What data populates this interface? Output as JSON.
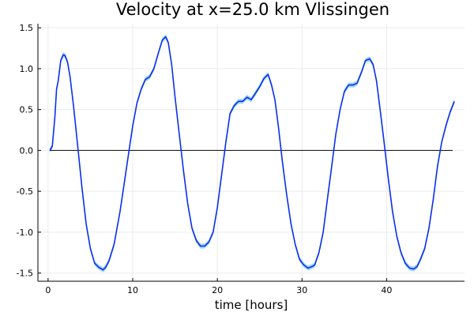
{
  "chart_data": {
    "type": "line",
    "title": "Velocity at x=25.0 km Vlissingen",
    "xlabel": "time [hours]",
    "ylabel": "",
    "xlim": [
      -1.2,
      49.2
    ],
    "ylim": [
      -1.6,
      1.55
    ],
    "xticks": [
      0,
      10,
      20,
      30,
      40
    ],
    "yticks": [
      -1.5,
      -1.0,
      -0.5,
      0.0,
      0.5,
      1.0,
      1.5
    ],
    "ytick_labels": [
      "-1.5",
      "-1.0",
      "-0.5",
      "0.0",
      "0.5",
      "1.0",
      "1.5"
    ],
    "grid": true,
    "legend": "none",
    "colors": {
      "velocity": "#0a2ff0",
      "band": "#7fc8f0",
      "zero_line": "#222222",
      "grid": "#ebebeb"
    },
    "band_halfwidth": 0.03,
    "series": [
      {
        "x": [
          0.2,
          0.5,
          0.8,
          1.0,
          1.2,
          1.5,
          1.8,
          2.0,
          2.3,
          2.6,
          3.0,
          3.5,
          4.0,
          4.5,
          5.0,
          5.5,
          6.0,
          6.5,
          6.8,
          7.2,
          7.8,
          8.5,
          9.0,
          9.5,
          10.0,
          10.5,
          11.0,
          11.5,
          12.0,
          12.5,
          13.0,
          13.5,
          13.9,
          14.2,
          14.6,
          15.0,
          15.5,
          16.0,
          16.5,
          17.0,
          17.5,
          18.0,
          18.5,
          19.0,
          19.5,
          20.0,
          20.5,
          21.0,
          21.5,
          22.0,
          22.5,
          23.0,
          23.5,
          24.0,
          24.5,
          25.0,
          25.5,
          26.0,
          26.4,
          26.8,
          27.2,
          27.7,
          28.2,
          28.7,
          29.2,
          29.7,
          30.2,
          30.7,
          31.2,
          31.5,
          32.0,
          32.5,
          33.0,
          33.5,
          34.0,
          34.5,
          35.0,
          35.5,
          36.0,
          36.5,
          37.0,
          37.5,
          38.0,
          38.4,
          38.8,
          39.2,
          39.7,
          40.2,
          40.7,
          41.2,
          41.7,
          42.2,
          42.7,
          43.2,
          43.6,
          44.0,
          44.5,
          45.0,
          45.5,
          46.0,
          46.5,
          47.0,
          47.5,
          48.0
        ],
        "y": [
          0.0,
          0.05,
          0.4,
          0.75,
          0.85,
          1.1,
          1.17,
          1.16,
          1.08,
          0.9,
          0.55,
          0.05,
          -0.45,
          -0.9,
          -1.2,
          -1.38,
          -1.43,
          -1.46,
          -1.43,
          -1.35,
          -1.15,
          -0.75,
          -0.4,
          -0.05,
          0.3,
          0.58,
          0.75,
          0.87,
          0.9,
          1.0,
          1.18,
          1.35,
          1.39,
          1.32,
          1.05,
          0.65,
          0.2,
          -0.25,
          -0.65,
          -0.95,
          -1.1,
          -1.17,
          -1.17,
          -1.12,
          -1.0,
          -0.7,
          -0.3,
          0.1,
          0.45,
          0.55,
          0.6,
          0.6,
          0.65,
          0.62,
          0.7,
          0.78,
          0.88,
          0.93,
          0.8,
          0.62,
          0.3,
          -0.15,
          -0.55,
          -0.9,
          -1.15,
          -1.33,
          -1.4,
          -1.44,
          -1.42,
          -1.4,
          -1.25,
          -1.0,
          -0.6,
          -0.2,
          0.2,
          0.5,
          0.72,
          0.8,
          0.8,
          0.82,
          0.95,
          1.1,
          1.12,
          1.05,
          0.85,
          0.52,
          0.1,
          -0.35,
          -0.75,
          -1.05,
          -1.25,
          -1.38,
          -1.44,
          -1.45,
          -1.42,
          -1.33,
          -1.2,
          -0.95,
          -0.6,
          -0.2,
          0.1,
          0.3,
          0.47,
          0.6
        ]
      }
    ],
    "zero_line": {
      "x": [
        0.2,
        47.8
      ],
      "y": 0.0
    }
  }
}
